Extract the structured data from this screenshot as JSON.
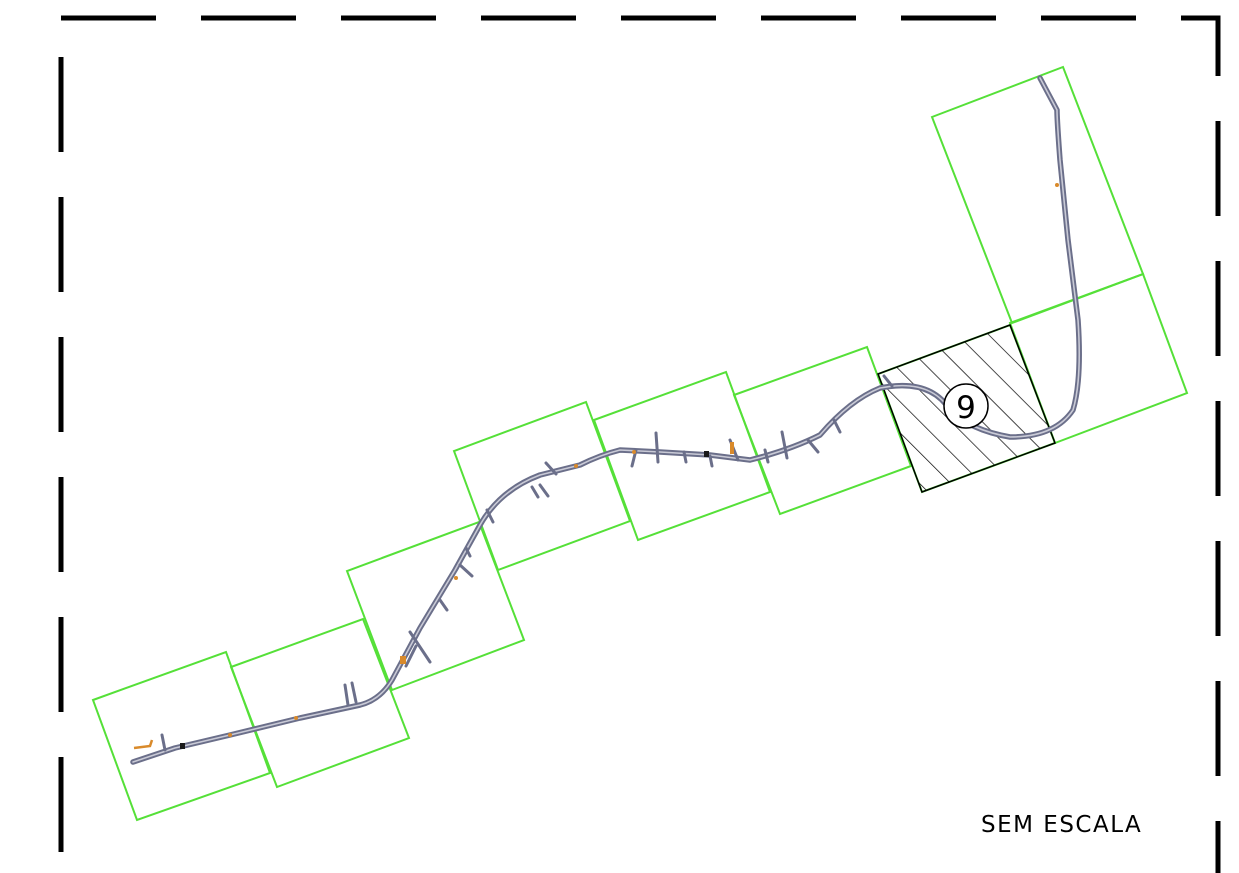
{
  "map": {
    "scale_note": "SEM ESCALA",
    "active_sheet": "9",
    "colors": {
      "frame_border": "#000000",
      "sheet_outline": "#55e038",
      "road": "#6b6f8a",
      "road_core": "#c9cad6",
      "accent": "#d98a2b",
      "hatch": "#000000"
    }
  }
}
